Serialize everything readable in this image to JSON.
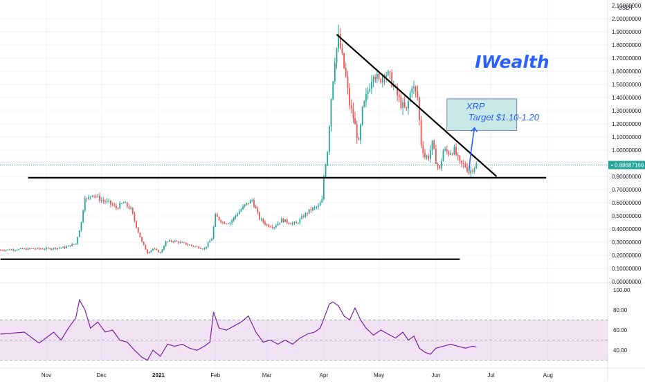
{
  "chart_data": {
    "type": "candlestick",
    "currency_label": "USDT",
    "brand": "IWealth",
    "price_axis": {
      "min": 0.0,
      "max": 2.1,
      "ticks": [
        "0.00000000",
        "0.10000000",
        "0.20000000",
        "0.30000000",
        "0.40000000",
        "0.50000000",
        "0.60000000",
        "0.70000000",
        "0.80000000",
        "0.90000000",
        "1.00000000",
        "1.10000000",
        "1.20000000",
        "1.30000000",
        "1.40000000",
        "1.50000000",
        "1.60000000",
        "1.70000000",
        "1.80000000",
        "1.90000000",
        "2.00000000",
        "2.10000000"
      ],
      "tick_values": [
        0,
        0.1,
        0.2,
        0.3,
        0.4,
        0.5,
        0.6,
        0.7,
        0.8,
        0.9,
        1.0,
        1.1,
        1.2,
        1.3,
        1.4,
        1.5,
        1.6,
        1.7,
        1.8,
        1.9,
        2.0,
        2.1
      ]
    },
    "current_price": {
      "label": "0.88687166",
      "value": 0.8869
    },
    "months": [
      {
        "label": "Nov",
        "day": 0
      },
      {
        "label": "Dec",
        "day": 30
      },
      {
        "label": "2021",
        "day": 61
      },
      {
        "label": "Feb",
        "day": 92
      },
      {
        "label": "Mar",
        "day": 120
      },
      {
        "label": "Apr",
        "day": 151
      },
      {
        "label": "May",
        "day": 181
      },
      {
        "label": "Jun",
        "day": 212
      },
      {
        "label": "Jul",
        "day": 242
      },
      {
        "label": "Aug",
        "day": 273
      }
    ],
    "price_path": [
      [
        -25,
        0.24
      ],
      [
        -8,
        0.25
      ],
      [
        0,
        0.25
      ],
      [
        10,
        0.26
      ],
      [
        16,
        0.29
      ],
      [
        19,
        0.45
      ],
      [
        21,
        0.65
      ],
      [
        22,
        0.62
      ],
      [
        25,
        0.67
      ],
      [
        30,
        0.62
      ],
      [
        34,
        0.6
      ],
      [
        38,
        0.56
      ],
      [
        42,
        0.6
      ],
      [
        46,
        0.55
      ],
      [
        49,
        0.42
      ],
      [
        52,
        0.3
      ],
      [
        55,
        0.22
      ],
      [
        58,
        0.25
      ],
      [
        62,
        0.22
      ],
      [
        65,
        0.3
      ],
      [
        69,
        0.31
      ],
      [
        75,
        0.29
      ],
      [
        80,
        0.27
      ],
      [
        86,
        0.25
      ],
      [
        90,
        0.33
      ],
      [
        92,
        0.5
      ],
      [
        96,
        0.45
      ],
      [
        100,
        0.45
      ],
      [
        104,
        0.52
      ],
      [
        108,
        0.58
      ],
      [
        112,
        0.62
      ],
      [
        116,
        0.48
      ],
      [
        120,
        0.43
      ],
      [
        124,
        0.42
      ],
      [
        128,
        0.47
      ],
      [
        132,
        0.45
      ],
      [
        136,
        0.44
      ],
      [
        140,
        0.5
      ],
      [
        144,
        0.55
      ],
      [
        148,
        0.57
      ],
      [
        150,
        0.62
      ],
      [
        151,
        0.8
      ],
      [
        153,
        1.0
      ],
      [
        155,
        1.4
      ],
      [
        157,
        1.7
      ],
      [
        159,
        1.85
      ],
      [
        161,
        1.7
      ],
      [
        163,
        1.55
      ],
      [
        165,
        1.35
      ],
      [
        167,
        1.25
      ],
      [
        170,
        1.05
      ],
      [
        172,
        1.3
      ],
      [
        175,
        1.45
      ],
      [
        178,
        1.6
      ],
      [
        181,
        1.52
      ],
      [
        184,
        1.6
      ],
      [
        187,
        1.55
      ],
      [
        190,
        1.45
      ],
      [
        193,
        1.35
      ],
      [
        196,
        1.3
      ],
      [
        199,
        1.5
      ],
      [
        202,
        1.4
      ],
      [
        204,
        1.05
      ],
      [
        206,
        0.95
      ],
      [
        208,
        0.95
      ],
      [
        210,
        1.05
      ],
      [
        212,
        0.92
      ],
      [
        214,
        0.85
      ],
      [
        216,
        1.0
      ],
      [
        219,
        0.98
      ],
      [
        222,
        1.0
      ],
      [
        225,
        0.9
      ],
      [
        228,
        0.88
      ],
      [
        230,
        0.83
      ],
      [
        232,
        0.86
      ],
      [
        234,
        0.89
      ]
    ],
    "lines": [
      {
        "name": "resistance",
        "from": [
          -10,
          0.79
        ],
        "to": [
          272,
          0.79
        ]
      },
      {
        "name": "support",
        "from": [
          -25,
          0.17
        ],
        "to": [
          225,
          0.17
        ]
      },
      {
        "name": "downtrend",
        "from": [
          158,
          1.88
        ],
        "to": [
          245,
          0.8
        ]
      }
    ],
    "annotation": {
      "lines": [
        "XRP",
        "Target $1.10-1.20"
      ],
      "box_days": [
        218,
        256
      ],
      "box_prices": [
        1.15,
        1.39
      ],
      "arrow_from": [
        230,
        0.84
      ],
      "arrow_to": [
        233,
        1.17
      ]
    },
    "rsi": {
      "ticks": [
        "40.00",
        "60.00",
        "80.00",
        "100.00"
      ],
      "tick_values": [
        40,
        60,
        80,
        100
      ],
      "min": 25,
      "max": 102,
      "band": [
        30,
        70
      ],
      "mid": 50,
      "path": [
        [
          -25,
          56
        ],
        [
          -12,
          58
        ],
        [
          -4,
          47
        ],
        [
          4,
          58
        ],
        [
          8,
          50
        ],
        [
          12,
          62
        ],
        [
          16,
          72
        ],
        [
          18,
          90
        ],
        [
          21,
          80
        ],
        [
          24,
          62
        ],
        [
          28,
          68
        ],
        [
          32,
          58
        ],
        [
          36,
          60
        ],
        [
          40,
          50
        ],
        [
          44,
          48
        ],
        [
          48,
          40
        ],
        [
          52,
          33
        ],
        [
          55,
          30
        ],
        [
          58,
          40
        ],
        [
          62,
          34
        ],
        [
          66,
          46
        ],
        [
          70,
          44
        ],
        [
          74,
          46
        ],
        [
          78,
          42
        ],
        [
          82,
          40
        ],
        [
          86,
          44
        ],
        [
          89,
          48
        ],
        [
          91,
          78
        ],
        [
          94,
          62
        ],
        [
          98,
          60
        ],
        [
          102,
          64
        ],
        [
          106,
          68
        ],
        [
          110,
          74
        ],
        [
          114,
          58
        ],
        [
          118,
          48
        ],
        [
          122,
          50
        ],
        [
          126,
          46
        ],
        [
          130,
          50
        ],
        [
          134,
          46
        ],
        [
          138,
          52
        ],
        [
          142,
          56
        ],
        [
          146,
          58
        ],
        [
          149,
          62
        ],
        [
          152,
          76
        ],
        [
          154,
          86
        ],
        [
          156,
          88
        ],
        [
          159,
          84
        ],
        [
          162,
          74
        ],
        [
          165,
          70
        ],
        [
          168,
          82
        ],
        [
          171,
          70
        ],
        [
          174,
          62
        ],
        [
          178,
          55
        ],
        [
          182,
          60
        ],
        [
          186,
          56
        ],
        [
          190,
          52
        ],
        [
          194,
          58
        ],
        [
          197,
          50
        ],
        [
          200,
          54
        ],
        [
          203,
          42
        ],
        [
          206,
          38
        ],
        [
          209,
          36
        ],
        [
          212,
          42
        ],
        [
          216,
          44
        ],
        [
          220,
          46
        ],
        [
          224,
          44
        ],
        [
          228,
          42
        ],
        [
          232,
          44
        ],
        [
          234,
          43
        ]
      ]
    }
  }
}
